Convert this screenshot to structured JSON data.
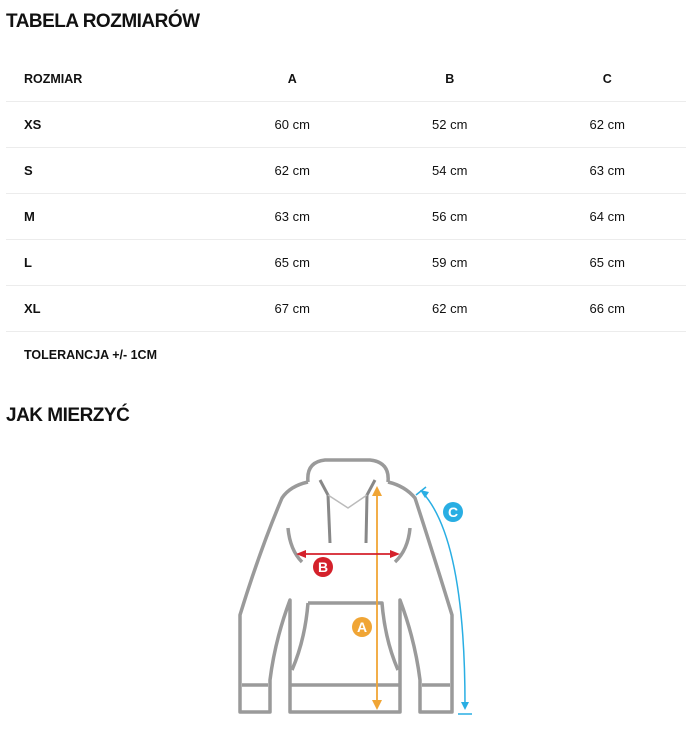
{
  "size_table": {
    "title": "TABELA ROZMIARÓW",
    "headers": [
      "ROZMIAR",
      "A",
      "B",
      "C"
    ],
    "rows": [
      [
        "XS",
        "60 cm",
        "52 cm",
        "62 cm"
      ],
      [
        "S",
        "62 cm",
        "54 cm",
        "63 cm"
      ],
      [
        "M",
        "63 cm",
        "56 cm",
        "64 cm"
      ],
      [
        "L",
        "65 cm",
        "59 cm",
        "65 cm"
      ],
      [
        "XL",
        "67 cm",
        "62 cm",
        "66 cm"
      ]
    ],
    "tolerance": "TOLERANCJA +/- 1CM"
  },
  "how_to_measure": {
    "title": "JAK MIERZYĆ",
    "labels": {
      "a": "A",
      "b": "B",
      "c": "C"
    },
    "colors": {
      "a": "#f0a535",
      "b": "#d4212b",
      "c": "#29aee3",
      "outline": "#9a9a9a"
    }
  }
}
